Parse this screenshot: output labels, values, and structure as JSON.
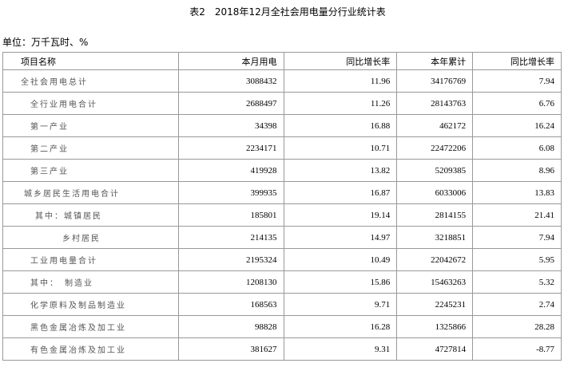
{
  "header": {
    "title": "表2　2018年12月全社会用电量分行业统计表",
    "unit": "单位：万千瓦时、%"
  },
  "table": {
    "columns": [
      "项目名称",
      "本月用电",
      "同比增长率",
      "本年累计",
      "同比增长率"
    ],
    "rows": [
      [
        "全社会用电总计",
        3088432,
        11.96,
        34176769,
        7.94
      ],
      [
        "全行业用电合计",
        2688497,
        11.26,
        28143763,
        6.76
      ],
      [
        "第一产业",
        34398,
        16.88,
        462172,
        16.24
      ],
      [
        "第二产业",
        2234171,
        10.71,
        22472206,
        6.08
      ],
      [
        "第三产业",
        419928,
        13.82,
        5209385,
        8.96
      ],
      [
        "城乡居民生活用电合计",
        399935,
        16.87,
        6033006,
        13.83
      ],
      [
        "其中：城镇居民",
        185801,
        19.14,
        2814155,
        21.41
      ],
      [
        "乡村居民",
        214135,
        14.97,
        3218851,
        7.94
      ],
      [
        "工业用电量合计",
        2195324,
        10.49,
        22042672,
        5.95
      ],
      [
        "其中：　制造业",
        1208130,
        15.86,
        15463263,
        5.32
      ],
      [
        "化学原料及制品制造业",
        168563,
        9.71,
        2245231,
        2.74
      ],
      [
        "黑色金属冶炼及加工业",
        98828,
        16.28,
        1325866,
        28.28
      ],
      [
        "有色金属冶炼及加工业",
        381627,
        9.31,
        4727814,
        -8.77
      ]
    ]
  }
}
